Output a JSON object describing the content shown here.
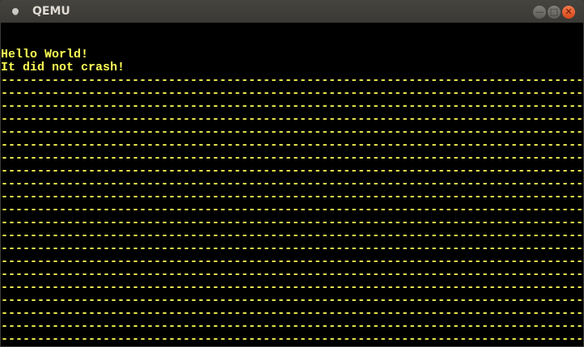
{
  "window": {
    "title": "QEMU",
    "minimize_icon": "minimize-icon",
    "maximize_icon": "maximize-icon",
    "close_icon": "close-icon"
  },
  "screen": {
    "text_color": "#ffff55",
    "lines": [
      "",
      "",
      "Hello World!",
      "It did not crash!",
      "--------------------------------------------------------------------------------",
      "--------------------------------------------------------------------------------",
      "--------------------------------------------------------------------------------",
      "--------------------------------------------------------------------------------",
      "--------------------------------------------------------------------------------",
      "--------------------------------------------------------------------------------",
      "--------------------------------------------------------------------------------",
      "--------------------------------------------------------------------------------",
      "--------------------------------------------------------------------------------",
      "--------------------------------------------------------------------------------",
      "--------------------------------------------------------------------------------",
      "--------------------------------------------------------------------------------",
      "--------------------------------------------------------------------------------",
      "--------------------------------------------------------------------------------",
      "--------------------------------------------------------------------------------",
      "--------------------------------------------------------------------------------",
      "--------------------------------------------------------------------------------",
      "--------------------------------------------------------------------------------",
      "--------------------------------------------------------------------------------",
      "--------------------------------------------------------------------------------",
      "--------------------------------------------------------------------------------",
      "------------------"
    ]
  }
}
